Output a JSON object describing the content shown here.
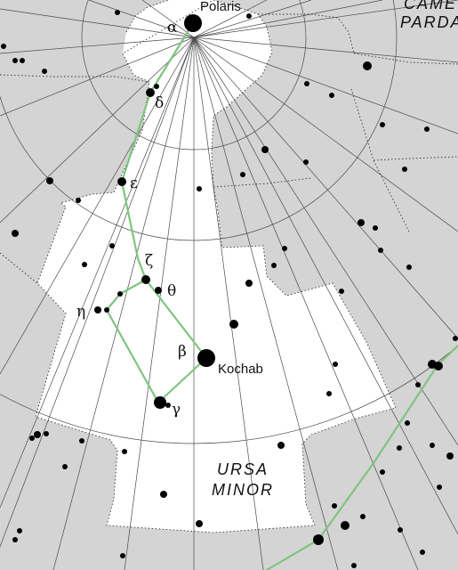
{
  "chart": {
    "constellation_label_lines": [
      "URSA",
      "MINOR"
    ],
    "neighbor_label_lines": [
      "CAME",
      "PARDA"
    ],
    "colors": {
      "outside_sky": "#d4d4d4",
      "constellation_area": "#ffffff",
      "grid_lines": "#4a4a4a",
      "figure_lines": "#7fc47f",
      "stars": "#000000"
    }
  },
  "labels": {
    "polaris_greek": "α",
    "polaris_name": "Polaris",
    "delta": "δ",
    "epsilon": "ε",
    "zeta": "ζ",
    "theta": "θ",
    "eta": "η",
    "beta": "β",
    "kochab_name": "Kochab",
    "gamma": "γ"
  }
}
